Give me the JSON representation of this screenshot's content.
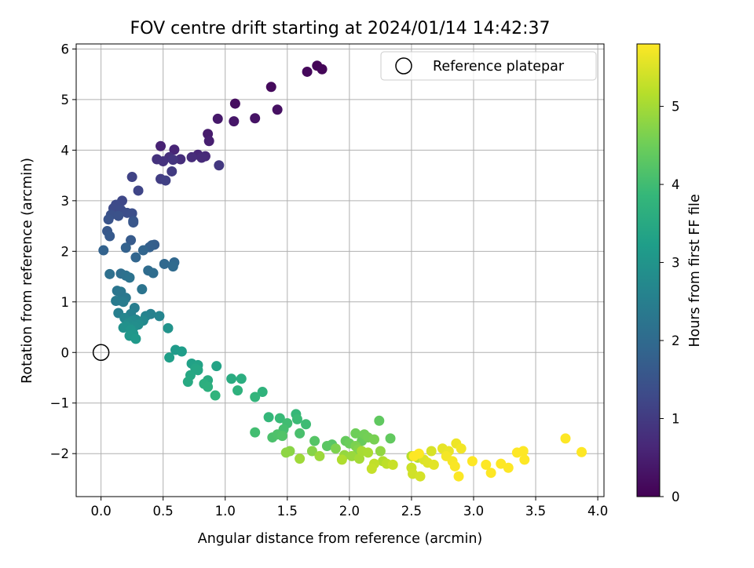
{
  "chart_data": {
    "type": "scatter",
    "title": "FOV centre drift starting at 2024/01/14 14:42:37",
    "xlabel": "Angular distance from reference (arcmin)",
    "ylabel": "Rotation from reference (arcmin)",
    "xlim": [
      -0.2,
      4.05
    ],
    "ylim": [
      -2.85,
      6.1
    ],
    "xticks": [
      0.0,
      0.5,
      1.0,
      1.5,
      2.0,
      2.5,
      3.0,
      3.5,
      4.0
    ],
    "xtick_labels": [
      "0.0",
      "0.5",
      "1.0",
      "1.5",
      "2.0",
      "2.5",
      "3.0",
      "3.5",
      "4.0"
    ],
    "yticks": [
      -2,
      -1,
      0,
      1,
      2,
      3,
      4,
      5,
      6
    ],
    "ytick_labels": [
      "−2",
      "−1",
      "0",
      "1",
      "2",
      "3",
      "4",
      "5",
      "6"
    ],
    "grid": true,
    "legend_position": "top-right",
    "legend": [
      {
        "label": "Reference platepar",
        "marker": "open-circle"
      }
    ],
    "reference_point": {
      "x": 0,
      "y": 0
    },
    "colorbar": {
      "label": "Hours from first FF file",
      "colormap": "viridis",
      "range": [
        0,
        5.8
      ],
      "ticks": [
        0,
        1,
        2,
        3,
        4,
        5
      ],
      "tick_labels": [
        "0",
        "1",
        "2",
        "3",
        "4",
        "5"
      ]
    },
    "points": [
      [
        1.74,
        5.67,
        0.05
      ],
      [
        1.78,
        5.6,
        0.08
      ],
      [
        1.66,
        5.55,
        0.12
      ],
      [
        1.37,
        5.25,
        0.15
      ],
      [
        1.08,
        4.92,
        0.2
      ],
      [
        1.42,
        4.8,
        0.25
      ],
      [
        1.24,
        4.63,
        0.3
      ],
      [
        1.07,
        4.57,
        0.35
      ],
      [
        0.94,
        4.62,
        0.4
      ],
      [
        0.86,
        4.32,
        0.45
      ],
      [
        0.87,
        4.18,
        0.5
      ],
      [
        0.48,
        4.08,
        0.55
      ],
      [
        0.59,
        4.01,
        0.6
      ],
      [
        0.78,
        3.91,
        0.63
      ],
      [
        0.84,
        3.88,
        0.66
      ],
      [
        0.81,
        3.85,
        0.7
      ],
      [
        0.73,
        3.86,
        0.73
      ],
      [
        0.64,
        3.82,
        0.76
      ],
      [
        0.55,
        3.86,
        0.8
      ],
      [
        0.45,
        3.82,
        0.83
      ],
      [
        0.5,
        3.78,
        0.86
      ],
      [
        0.58,
        3.81,
        0.9
      ],
      [
        0.95,
        3.7,
        0.95
      ],
      [
        0.57,
        3.58,
        1.0
      ],
      [
        0.48,
        3.43,
        1.05
      ],
      [
        0.52,
        3.4,
        1.1
      ],
      [
        0.25,
        3.47,
        1.15
      ],
      [
        0.3,
        3.2,
        1.2
      ],
      [
        0.17,
        3.0,
        1.25
      ],
      [
        0.12,
        2.92,
        1.28
      ],
      [
        0.1,
        2.85,
        1.31
      ],
      [
        0.16,
        2.82,
        1.34
      ],
      [
        0.21,
        2.76,
        1.37
      ],
      [
        0.25,
        2.75,
        1.4
      ],
      [
        0.08,
        2.72,
        1.43
      ],
      [
        0.14,
        2.7,
        1.46
      ],
      [
        0.06,
        2.63,
        1.5
      ],
      [
        0.26,
        2.6,
        1.53
      ],
      [
        0.26,
        2.57,
        1.56
      ],
      [
        0.05,
        2.4,
        1.6
      ],
      [
        0.07,
        2.3,
        1.63
      ],
      [
        0.24,
        2.22,
        1.66
      ],
      [
        0.43,
        2.13,
        1.7
      ],
      [
        0.41,
        2.12,
        1.73
      ],
      [
        0.39,
        2.08,
        1.76
      ],
      [
        0.2,
        2.07,
        1.8
      ],
      [
        0.02,
        2.02,
        1.83
      ],
      [
        0.34,
        2.02,
        1.86
      ],
      [
        0.28,
        1.88,
        1.9
      ],
      [
        0.59,
        1.78,
        1.93
      ],
      [
        0.51,
        1.75,
        1.96
      ],
      [
        0.58,
        1.7,
        2.0
      ],
      [
        0.38,
        1.62,
        2.03
      ],
      [
        0.42,
        1.57,
        2.06
      ],
      [
        0.16,
        1.56,
        2.1
      ],
      [
        0.07,
        1.55,
        2.13
      ],
      [
        0.2,
        1.52,
        2.16
      ],
      [
        0.23,
        1.48,
        2.2
      ],
      [
        0.33,
        1.25,
        2.23
      ],
      [
        0.13,
        1.22,
        2.26
      ],
      [
        0.16,
        1.2,
        2.3
      ],
      [
        0.2,
        1.08,
        2.33
      ],
      [
        0.15,
        1.03,
        2.36
      ],
      [
        0.12,
        1.02,
        2.4
      ],
      [
        0.18,
        1.0,
        2.43
      ],
      [
        0.27,
        0.88,
        2.46
      ],
      [
        0.14,
        0.78,
        2.5
      ],
      [
        0.24,
        0.76,
        2.53
      ],
      [
        0.4,
        0.76,
        2.56
      ],
      [
        0.36,
        0.72,
        2.6
      ],
      [
        0.47,
        0.72,
        2.63
      ],
      [
        0.19,
        0.68,
        2.66
      ],
      [
        0.28,
        0.65,
        2.7
      ],
      [
        0.34,
        0.63,
        2.73
      ],
      [
        0.25,
        0.62,
        2.76
      ],
      [
        0.22,
        0.58,
        2.8
      ],
      [
        0.3,
        0.55,
        2.83
      ],
      [
        0.27,
        0.52,
        2.86
      ],
      [
        0.2,
        0.52,
        2.9
      ],
      [
        0.18,
        0.49,
        2.93
      ],
      [
        0.54,
        0.48,
        2.96
      ],
      [
        0.24,
        0.45,
        3.0
      ],
      [
        0.26,
        0.37,
        3.03
      ],
      [
        0.23,
        0.33,
        3.06
      ],
      [
        0.28,
        0.27,
        3.1
      ],
      [
        0.6,
        0.05,
        3.15
      ],
      [
        0.65,
        0.02,
        3.2
      ],
      [
        0.55,
        -0.1,
        3.25
      ],
      [
        0.73,
        -0.22,
        3.3
      ],
      [
        0.78,
        -0.25,
        3.33
      ],
      [
        0.93,
        -0.27,
        3.36
      ],
      [
        0.76,
        -0.32,
        3.4
      ],
      [
        0.78,
        -0.35,
        3.43
      ],
      [
        0.72,
        -0.45,
        3.46
      ],
      [
        0.7,
        -0.58,
        3.5
      ],
      [
        0.86,
        -0.55,
        3.53
      ],
      [
        1.05,
        -0.52,
        3.56
      ],
      [
        1.13,
        -0.52,
        3.6
      ],
      [
        0.83,
        -0.62,
        3.63
      ],
      [
        0.86,
        -0.68,
        3.66
      ],
      [
        1.1,
        -0.75,
        3.7
      ],
      [
        1.3,
        -0.78,
        3.73
      ],
      [
        0.92,
        -0.85,
        3.76
      ],
      [
        1.24,
        -0.88,
        3.8
      ],
      [
        1.35,
        -1.28,
        3.85
      ],
      [
        1.57,
        -1.22,
        3.88
      ],
      [
        1.44,
        -1.3,
        3.91
      ],
      [
        1.58,
        -1.32,
        3.94
      ],
      [
        1.65,
        -1.42,
        3.97
      ],
      [
        1.5,
        -1.4,
        4.0
      ],
      [
        1.24,
        -1.58,
        4.03
      ],
      [
        1.47,
        -1.52,
        4.06
      ],
      [
        1.6,
        -1.6,
        4.1
      ],
      [
        1.38,
        -1.68,
        4.13
      ],
      [
        1.42,
        -1.62,
        4.16
      ],
      [
        1.46,
        -1.65,
        4.2
      ],
      [
        1.72,
        -1.75,
        4.23
      ],
      [
        1.86,
        -1.82,
        4.26
      ],
      [
        1.82,
        -1.85,
        4.3
      ],
      [
        2.24,
        -1.35,
        4.35
      ],
      [
        2.33,
        -1.7,
        4.38
      ],
      [
        1.97,
        -1.75,
        4.41
      ],
      [
        2.1,
        -1.75,
        4.44
      ],
      [
        2.0,
        -1.8,
        4.47
      ],
      [
        2.05,
        -1.6,
        4.5
      ],
      [
        2.12,
        -1.62,
        4.53
      ],
      [
        2.15,
        -1.68,
        4.56
      ],
      [
        2.2,
        -1.72,
        4.6
      ],
      [
        2.05,
        -1.85,
        4.63
      ],
      [
        1.89,
        -1.9,
        4.66
      ],
      [
        2.07,
        -1.92,
        4.7
      ],
      [
        1.7,
        -1.95,
        4.73
      ],
      [
        1.52,
        -1.95,
        4.76
      ],
      [
        1.49,
        -1.98,
        4.8
      ],
      [
        2.25,
        -1.95,
        4.83
      ],
      [
        1.96,
        -2.03,
        4.86
      ],
      [
        2.02,
        -2.05,
        4.9
      ],
      [
        1.76,
        -2.05,
        4.93
      ],
      [
        1.6,
        -2.1,
        4.96
      ],
      [
        2.08,
        -2.1,
        5.0
      ],
      [
        2.1,
        -1.95,
        5.03
      ],
      [
        2.15,
        -1.98,
        5.06
      ],
      [
        1.94,
        -2.12,
        5.1
      ],
      [
        2.27,
        -2.15,
        5.13
      ],
      [
        2.5,
        -2.05,
        5.16
      ],
      [
        2.55,
        -2.08,
        5.2
      ],
      [
        2.3,
        -2.2,
        5.23
      ],
      [
        2.2,
        -2.2,
        5.26
      ],
      [
        2.18,
        -2.3,
        5.3
      ],
      [
        2.35,
        -2.22,
        5.33
      ],
      [
        2.5,
        -2.28,
        5.36
      ],
      [
        2.51,
        -2.4,
        5.4
      ],
      [
        2.57,
        -2.45,
        5.43
      ],
      [
        2.66,
        -1.95,
        5.46
      ],
      [
        2.6,
        -2.12,
        5.5
      ],
      [
        2.63,
        -2.18,
        5.53
      ],
      [
        2.68,
        -2.22,
        5.56
      ],
      [
        2.75,
        -1.9,
        5.6
      ],
      [
        2.8,
        -1.95,
        5.63
      ],
      [
        2.86,
        -1.8,
        5.66
      ],
      [
        2.9,
        -1.9,
        5.7
      ],
      [
        2.78,
        -2.05,
        5.72
      ],
      [
        2.83,
        -2.15,
        5.74
      ],
      [
        2.85,
        -2.25,
        5.76
      ],
      [
        2.88,
        -2.45,
        5.78
      ],
      [
        2.56,
        -2.0,
        5.8
      ],
      [
        2.52,
        -2.05,
        5.8
      ],
      [
        2.99,
        -2.15,
        5.8
      ],
      [
        3.1,
        -2.22,
        5.8
      ],
      [
        3.14,
        -2.38,
        5.8
      ],
      [
        3.22,
        -2.2,
        5.8
      ],
      [
        3.28,
        -2.28,
        5.8
      ],
      [
        3.35,
        -1.98,
        5.8
      ],
      [
        3.4,
        -1.95,
        5.8
      ],
      [
        3.41,
        -2.12,
        5.8
      ],
      [
        3.74,
        -1.7,
        5.8
      ],
      [
        3.87,
        -1.97,
        5.8
      ]
    ]
  }
}
